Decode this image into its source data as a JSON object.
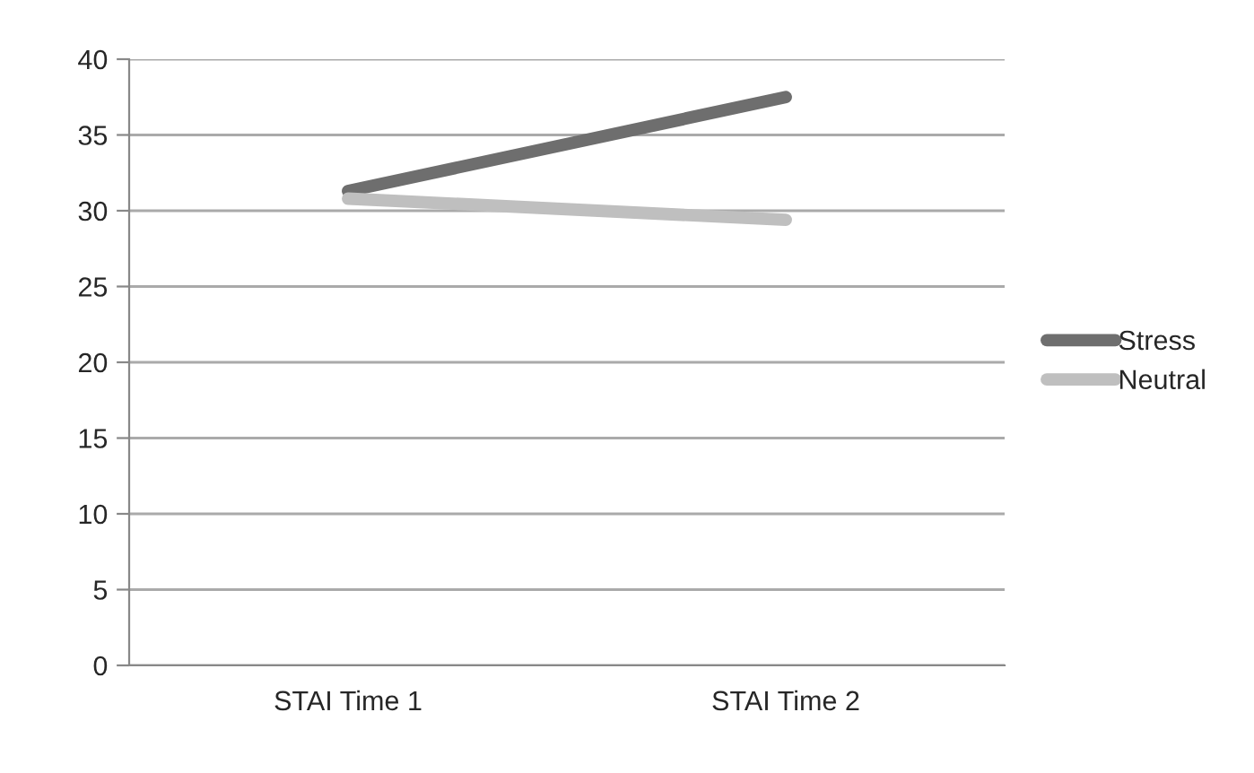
{
  "chart_data": {
    "type": "line",
    "categories": [
      "STAI Time 1",
      "STAI Time 2"
    ],
    "series": [
      {
        "name": "Stress",
        "color": "#6e6e6e",
        "values": [
          31.3,
          37.5
        ]
      },
      {
        "name": "Neutral",
        "color": "#bfbfbf",
        "values": [
          30.8,
          29.4
        ]
      }
    ],
    "ylim": [
      0,
      40
    ],
    "yticks": [
      0,
      5,
      10,
      15,
      20,
      25,
      30,
      35,
      40
    ],
    "grid": "y",
    "legend": "right",
    "marker": "none",
    "line_style": "solid"
  }
}
